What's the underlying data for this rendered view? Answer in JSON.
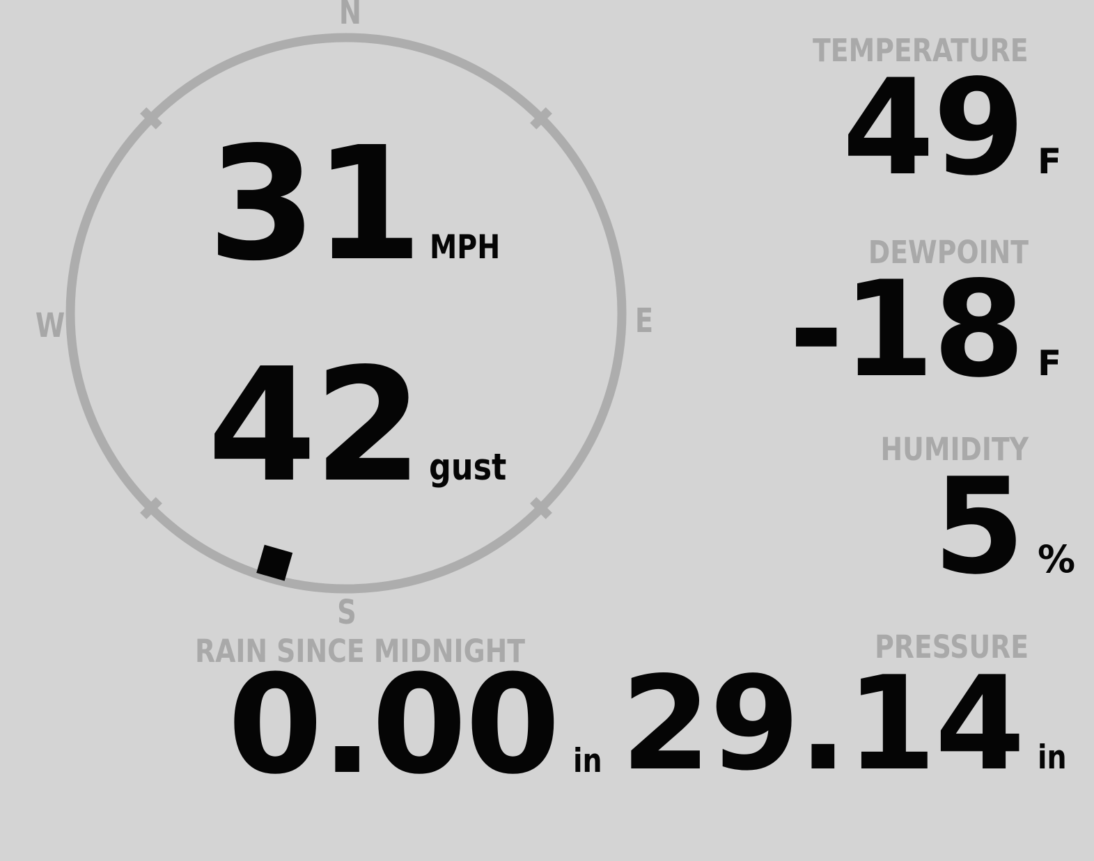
{
  "theme": {
    "background": "#d4d4d4",
    "ring_gray": "#adadad",
    "label_gray": "#a9a9a9",
    "value_black": "#050505"
  },
  "wind": {
    "compass": {
      "north": "N",
      "east": "E",
      "south": "S",
      "west": "W"
    },
    "speed_value": "31",
    "speed_unit": "MPH",
    "gust_value": "42",
    "gust_unit": "gust",
    "direction_degrees": 196
  },
  "temperature": {
    "label": "TEMPERATURE",
    "value": "49",
    "unit": "F"
  },
  "dewpoint": {
    "label": "DEWPOINT",
    "value": "-18",
    "unit": "F"
  },
  "humidity": {
    "label": "HUMIDITY",
    "value": "5",
    "unit": "%"
  },
  "rain": {
    "label": "RAIN SINCE MIDNIGHT",
    "value": "0.00",
    "unit": "in"
  },
  "pressure": {
    "label": "PRESSURE",
    "value": "29.14",
    "unit": "in"
  }
}
